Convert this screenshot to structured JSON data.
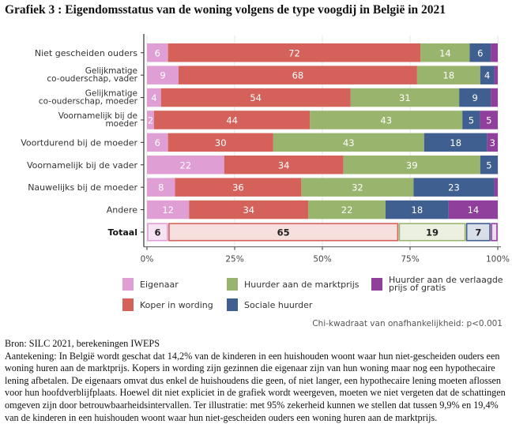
{
  "title": "Grafiek 3 : Eigendomsstatus van de woning volgens de type voogdij in België in 2021",
  "chart_data": {
    "type": "bar",
    "orientation": "horizontal",
    "stacked": "100%",
    "title": "Grafiek 3 : Eigendomsstatus van de woning volgens de type voogdij in België in 2021",
    "xlabel": "",
    "ylabel": "",
    "xlim": [
      0,
      100
    ],
    "x_ticks": [
      "0%",
      "25%",
      "50%",
      "75%",
      "100%"
    ],
    "grid": true,
    "legend_position": "bottom",
    "categories": [
      [
        "Niet gescheiden ouders"
      ],
      [
        "Gelijkmatige",
        "co-ouderschap, vader"
      ],
      [
        "Gelijkmatige",
        "co-ouderschap, moeder"
      ],
      [
        "Voornamelijk bij de",
        "moeder"
      ],
      [
        "Voortdurend bij de moeder"
      ],
      [
        "Voornamelijk bij de vader"
      ],
      [
        "Nauwelijks bij de moeder"
      ],
      [
        "Andere"
      ],
      [
        "Totaal"
      ]
    ],
    "highlight_category": "Totaal",
    "series": [
      {
        "name": "Eigenaar",
        "color": "#e09fd4",
        "light_color": "#f7e4f3",
        "values": [
          6,
          9,
          4,
          2,
          6,
          22,
          8,
          12,
          6
        ],
        "labels": [
          "6",
          "9",
          "4",
          "2",
          "6",
          "22",
          "8",
          "12",
          "6"
        ]
      },
      {
        "name": "Koper in wording",
        "color": "#d4625a",
        "light_color": "#f6dfdd",
        "values": [
          72,
          68,
          54,
          44,
          30,
          34,
          36,
          34,
          65
        ],
        "labels": [
          "72",
          "68",
          "54",
          "44",
          "30",
          "34",
          "36",
          "34",
          "65"
        ]
      },
      {
        "name": "Huurder aan de marktprijs",
        "color": "#99b46c",
        "light_color": "#ebf0e1",
        "values": [
          14,
          18,
          31,
          43,
          43,
          39,
          32,
          22,
          19
        ],
        "labels": [
          "14",
          "18",
          "31",
          "43",
          "43",
          "39",
          "32",
          "22",
          "19"
        ]
      },
      {
        "name": "Sociale huurder",
        "color": "#3f5f91",
        "light_color": "#d9dfe9",
        "values": [
          6,
          4,
          9,
          5,
          18,
          5,
          23,
          18,
          7
        ],
        "labels": [
          "6",
          "4",
          "9",
          "5",
          "18",
          "5",
          "23",
          "18",
          "7"
        ]
      },
      {
        "name": "Huurder aan de verlaagde prijs of gratis",
        "color": "#913f9c",
        "light_color": "#ecdcee",
        "values": [
          2,
          1,
          2,
          5,
          3,
          0,
          1,
          14,
          2
        ],
        "labels": [
          "",
          "",
          "",
          "5",
          "3",
          "",
          "",
          "14",
          ""
        ]
      }
    ],
    "legend": [
      {
        "name": "Eigenaar",
        "color": "#e09fd4"
      },
      {
        "name": "Huurder aan de marktprijs",
        "color": "#99b46c"
      },
      {
        "name": "Huurder aan de verlaagde prijs of gratis",
        "lines": [
          "Huurder aan de verlaagde",
          "prijs of gratis"
        ],
        "color": "#913f9c"
      },
      {
        "name": "Koper in wording",
        "color": "#d4625a"
      },
      {
        "name": "Sociale huurder",
        "color": "#3f5f91"
      }
    ],
    "annotation": "Chi-kwadraat van onafhankelijkheid: p<0.001"
  },
  "footer": {
    "source": "Bron: SILC 2021, berekeningen IWEPS",
    "note": "Aantekening: In België wordt geschat dat 14,2% van de kinderen in een huishouden woont waar hun niet-gescheiden ouders een woning huren aan de marktprijs. Kopers in wording zijn gezinnen die eigenaar zijn van hun woning maar nog een hypothecaire lening afbetalen. De eigenaars omvat dus enkel de huishoudens die geen, of niet langer, een hypothecaire lening moeten aflossen voor hun hoofdverblijfplaats. Hoewel dit niet expliciet in de grafiek wordt weergeven, moeten we niet vergeten dat de schattingen omgeven zijn door betrouwbaarheidsintervallen. Ter illustratie: met 95% zekerheid kunnen we stellen dat tussen 9,9% en 19,4% van de kinderen in een huishouden woont waar hun niet-gescheiden ouders een woning huren aan de marktprijs."
  }
}
